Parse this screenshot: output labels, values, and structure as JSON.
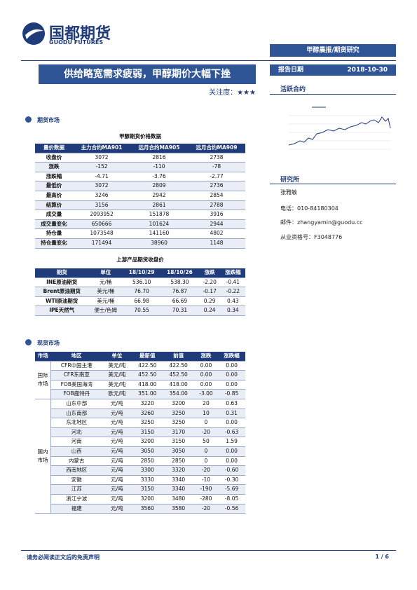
{
  "header": {
    "logo": "国都期货",
    "logo_en": "GUODU FUTURES",
    "tag": "甲醇晨报/期货研究"
  },
  "title": "供给略宽需求疲弱，甲醇期价大幅下挫",
  "attention": "关注度：★★★",
  "report_date": {
    "label": "报告日期",
    "value": "2018-10-30"
  },
  "active_contract": {
    "title": "活跃合约"
  },
  "institute": {
    "title": "研究所",
    "name": "张雅敏",
    "phone": "电话：010-84180304",
    "email": "邮件：zhangyamin@guodu.cc",
    "license": "从业资格号：F3048776"
  },
  "futures": {
    "section": "期货市场",
    "table1": {
      "title": "甲醇期货价格数据",
      "headers": [
        "量价数据",
        "主力合约MA901",
        "远月合约MA905",
        "远月合约MA909"
      ],
      "rows": [
        [
          "收盘价",
          "3072",
          "2816",
          "2738"
        ],
        [
          "涨跌",
          "-152",
          "-110",
          "-78"
        ],
        [
          "涨跌幅",
          "-4.71",
          "-3.76",
          "-2.77"
        ],
        [
          "最低价",
          "3072",
          "2809",
          "2736"
        ],
        [
          "最高价",
          "3246",
          "2942",
          "2854"
        ],
        [
          "结算价",
          "3156",
          "2861",
          "2788"
        ],
        [
          "成交量",
          "2093952",
          "151878",
          "3916"
        ],
        [
          "成交量变化",
          "650666",
          "101624",
          "2944"
        ],
        [
          "持仓量",
          "1073548",
          "141160",
          "4802"
        ],
        [
          "持仓量变化",
          "171494",
          "38960",
          "1148"
        ]
      ]
    },
    "table2": {
      "title": "上游产品期货收盘价",
      "headers": [
        "期货",
        "单位",
        "18/10/29",
        "18/10/26",
        "涨跌",
        "涨跌幅"
      ],
      "rows": [
        [
          "INE原油期货",
          "元/桶",
          "536.10",
          "538.30",
          "-2.20",
          "-0.41"
        ],
        [
          "Brent原油期货",
          "美元/桶",
          "76.70",
          "76.87",
          "-0.17",
          "-0.22"
        ],
        [
          "WTI原油期货",
          "美元/桶",
          "66.98",
          "66.69",
          "0.29",
          "0.43"
        ],
        [
          "IPE天然气",
          "便士/色姆",
          "70.55",
          "70.31",
          "0.24",
          "0.34"
        ]
      ]
    }
  },
  "spot": {
    "section": "现货市场",
    "headers": [
      "市场",
      "地区",
      "单位",
      "最新值",
      "前值",
      "涨跌",
      "涨跌幅"
    ],
    "groups": [
      {
        "market": "国际市场",
        "rows": [
          [
            "CFR中国主港",
            "美元/吨",
            "422.50",
            "422.50",
            "0.00",
            "0.00"
          ],
          [
            "CFR东南亚",
            "美元/吨",
            "452.50",
            "452.50",
            "0.00",
            "0.00"
          ],
          [
            "FOB美国海湾",
            "美元/吨",
            "418.00",
            "418.00",
            "0.00",
            "0.00"
          ],
          [
            "FOB鹿特丹",
            "欧元/吨",
            "351.00",
            "354.00",
            "-3.00",
            "-0.85"
          ]
        ]
      },
      {
        "market": "国内市场",
        "rows": [
          [
            "山东中部",
            "元/吨",
            "3220",
            "3200",
            "20",
            "0.63"
          ],
          [
            "山东南部",
            "元/吨",
            "3260",
            "3250",
            "10",
            "0.31"
          ],
          [
            "东北地区",
            "元/吨",
            "3250",
            "3250",
            "0",
            "0.00"
          ],
          [
            "河北",
            "元/吨",
            "3150",
            "3170",
            "-20",
            "-0.63"
          ],
          [
            "河南",
            "元/吨",
            "3200",
            "3150",
            "50",
            "1.59"
          ],
          [
            "山西",
            "元/吨",
            "3050",
            "3050",
            "0",
            "0.00"
          ],
          [
            "内蒙古",
            "元/吨",
            "2850",
            "2850",
            "0",
            "0.00"
          ],
          [
            "西南地区",
            "元/吨",
            "3300",
            "3320",
            "-20",
            "-0.60"
          ],
          [
            "安徽",
            "元/吨",
            "3330",
            "3340",
            "-10",
            "-0.30"
          ],
          [
            "江苏",
            "元/吨",
            "3150",
            "3340",
            "-190",
            "-5.69"
          ],
          [
            "浙江宁波",
            "元/吨",
            "3200",
            "3480",
            "-280",
            "-8.05"
          ],
          [
            "福建",
            "元/吨",
            "3560",
            "3580",
            "-20",
            "-0.56"
          ]
        ]
      }
    ]
  },
  "footer": {
    "disclaimer": "请务必阅读正文后的免责声明",
    "page": "1 / 6"
  }
}
